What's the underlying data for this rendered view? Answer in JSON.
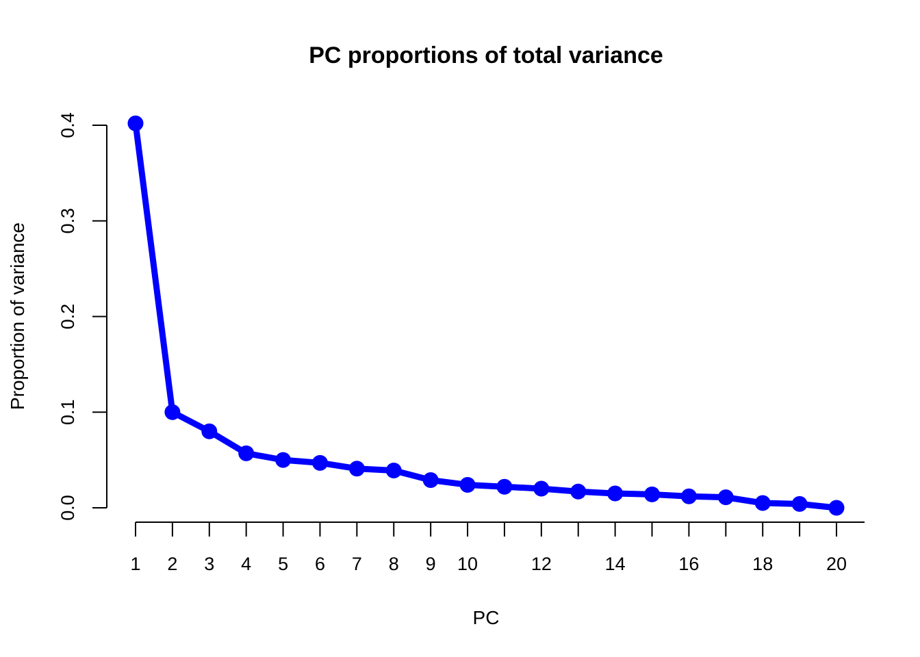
{
  "chart_data": {
    "type": "line",
    "title": "PC proportions of total variance",
    "xlabel": "PC",
    "ylabel": "Proportion of variance",
    "x": [
      1,
      2,
      3,
      4,
      5,
      6,
      7,
      8,
      9,
      10,
      11,
      12,
      13,
      14,
      15,
      16,
      17,
      18,
      19,
      20
    ],
    "series": [
      {
        "values": [
          0.402,
          0.1,
          0.08,
          0.057,
          0.05,
          0.047,
          0.041,
          0.039,
          0.029,
          0.024,
          0.022,
          0.02,
          0.017,
          0.015,
          0.014,
          0.012,
          0.011,
          0.005,
          0.004,
          0.0
        ],
        "color": "#0000ff",
        "markers": "filled-circle"
      }
    ],
    "xlim": [
      1,
      20
    ],
    "ylim": [
      0,
      0.4
    ],
    "x_ticks": [
      1,
      2,
      3,
      4,
      5,
      6,
      7,
      8,
      9,
      10,
      11,
      12,
      13,
      14,
      15,
      16,
      17,
      18,
      19,
      20
    ],
    "x_tick_labels": [
      "1",
      "2",
      "3",
      "4",
      "5",
      "6",
      "7",
      "8",
      "9",
      "10",
      "",
      "12",
      "",
      "14",
      "",
      "16",
      "",
      "18",
      "",
      "20"
    ],
    "y_ticks": [
      0,
      0.1,
      0.2,
      0.3,
      0.4
    ],
    "y_tick_labels": [
      "0.0",
      "0.1",
      "0.2",
      "0.3",
      "0.4"
    ],
    "grid": false,
    "legend": "none"
  }
}
